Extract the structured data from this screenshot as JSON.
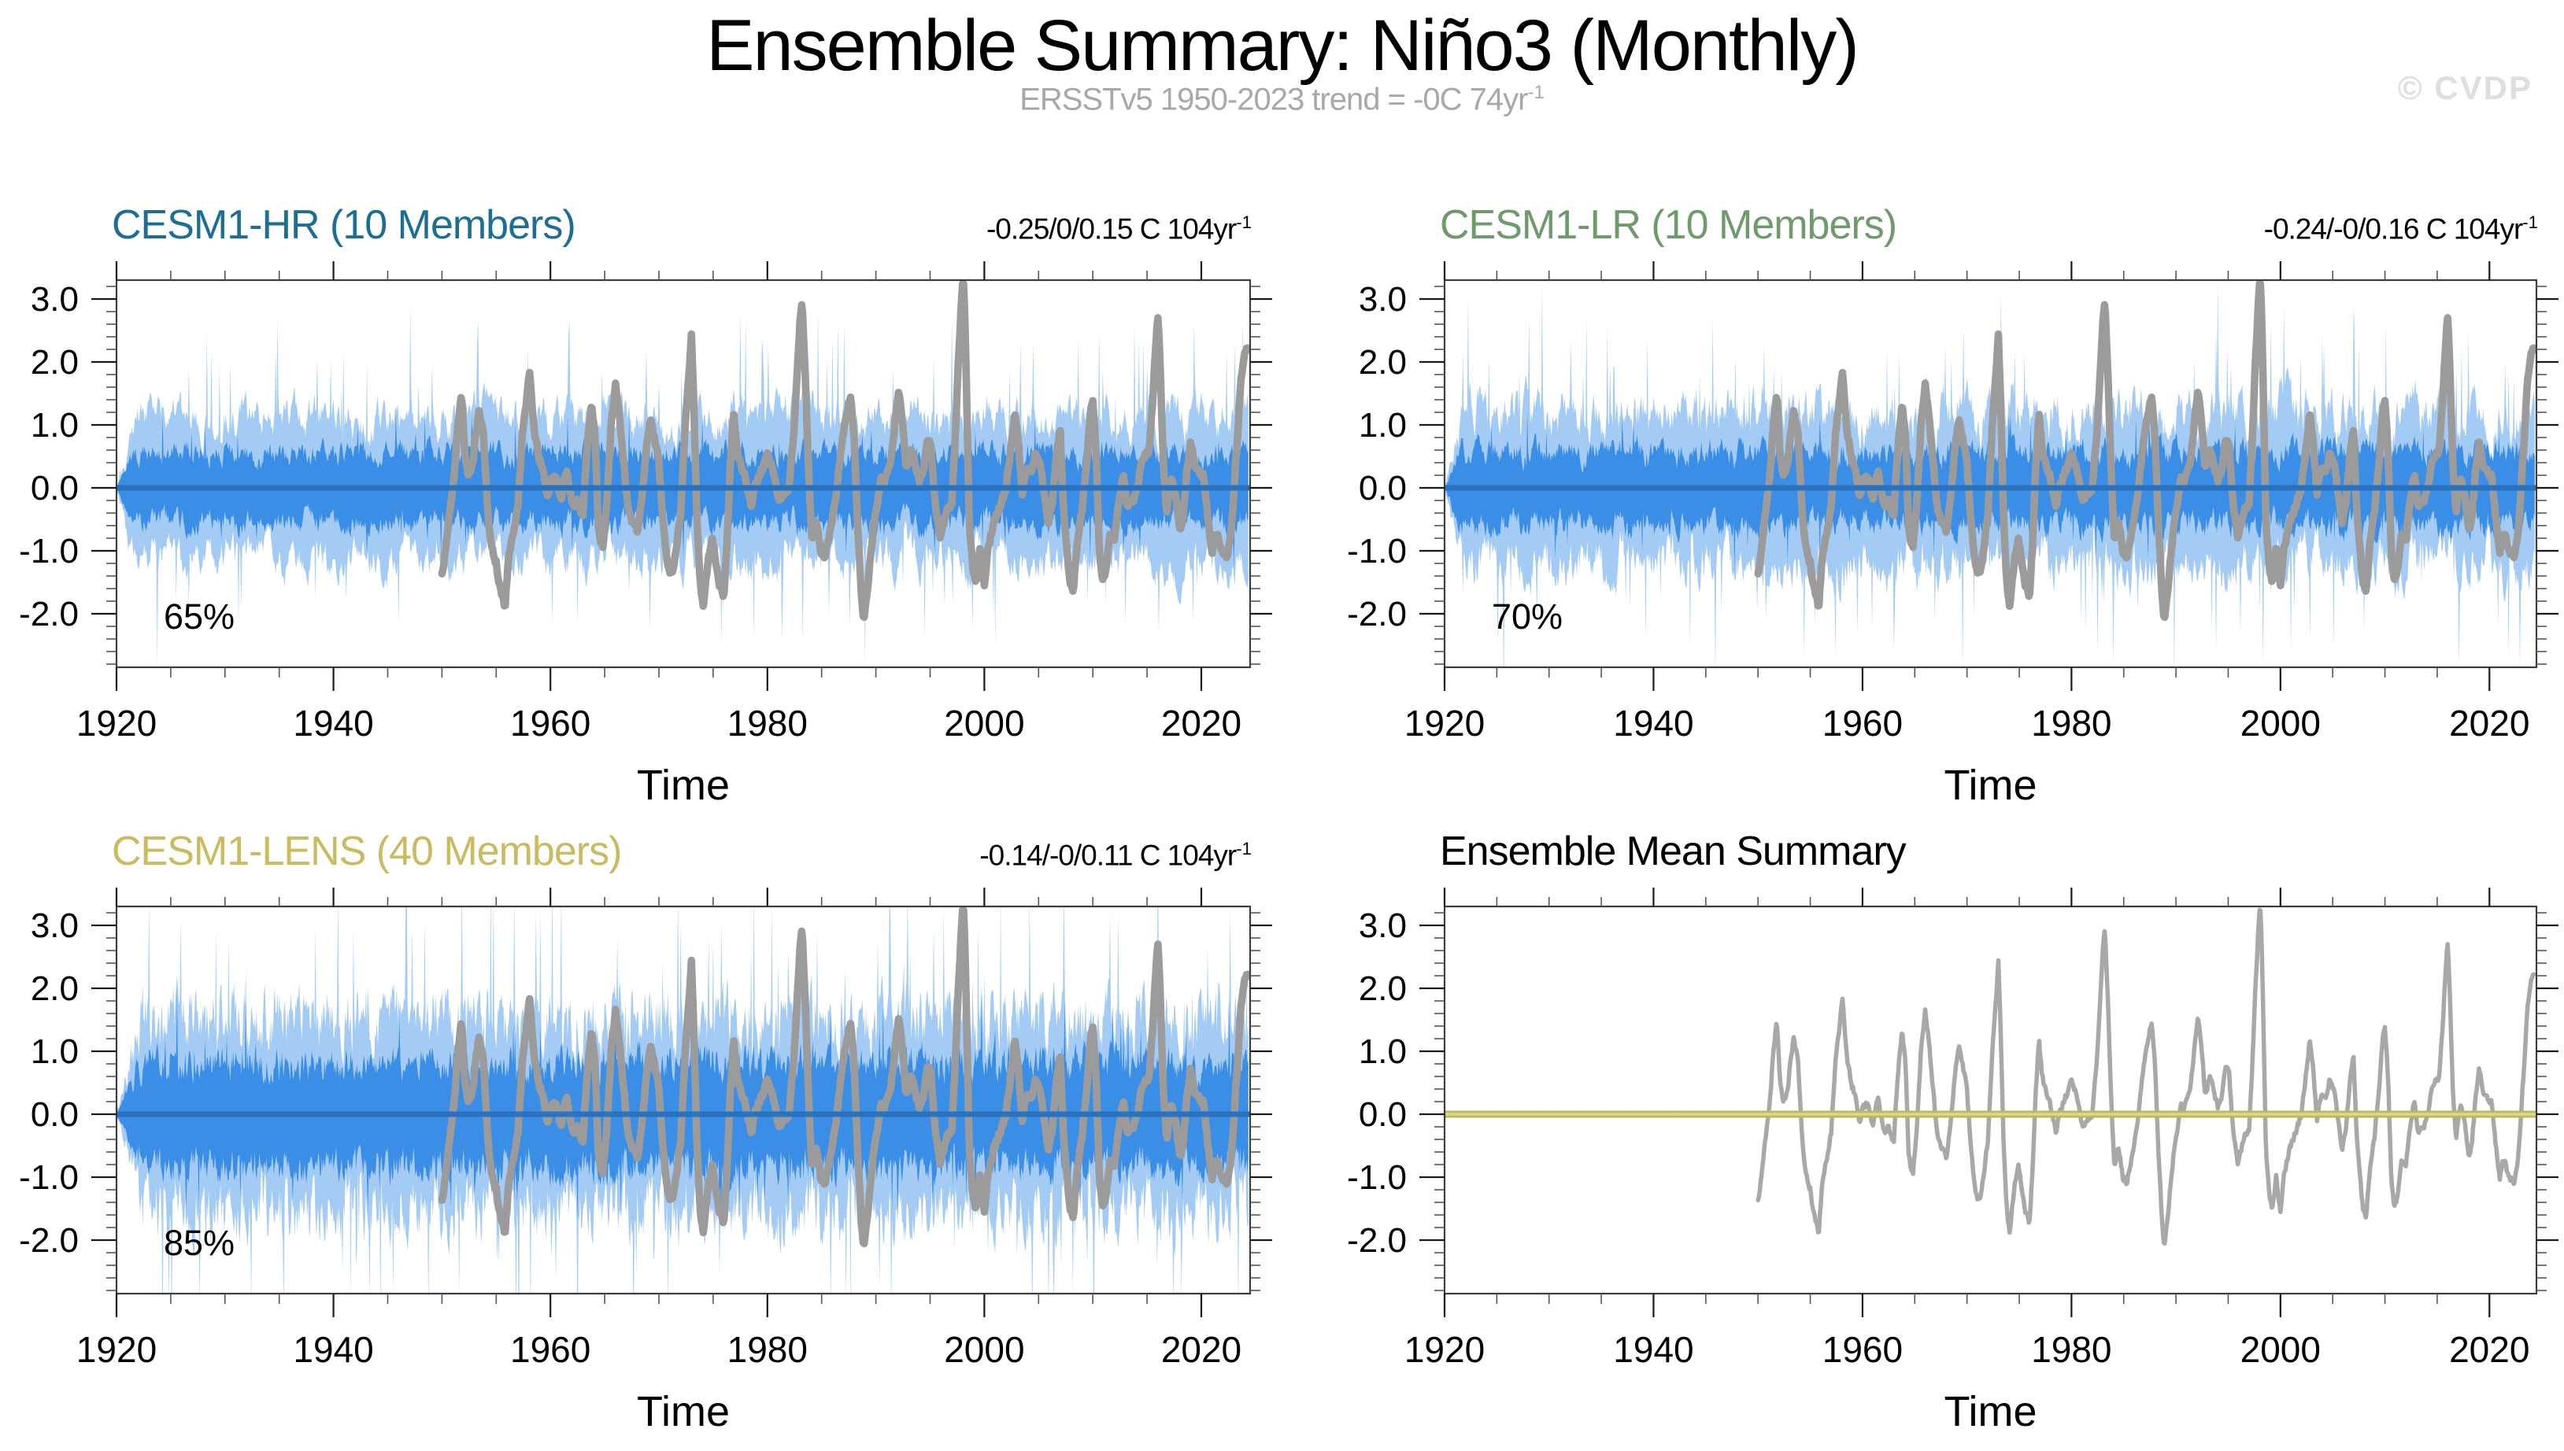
{
  "page": {
    "title": "Ensemble Summary: Niño3 (Monthly)",
    "subtitle": "ERSSTv5 1950-2023 trend = -0C 74yr",
    "subtitle_sup": "-1",
    "watermark": "© CVDP"
  },
  "colors": {
    "title": "#000000",
    "subtitle": "#a8a8a8",
    "watermark": "#dedede",
    "axis_frame": "#3c3c3c",
    "tick_major": "#1a1a1a",
    "tick_minor": "#555555",
    "spread_outer_blue": "#a4cbf3",
    "spread_inner_blue": "#3a8ee6",
    "ensemble_mean_blue": "#2a72bd",
    "observed_gray": "#9b9b9b",
    "observed_gray_light": "#a8a8a8",
    "ensemble_mean_olive": "#bdb85c",
    "ensemble_mean_olive_core": "#dbd78c"
  },
  "chart_data": {
    "type": "line",
    "title": "Ensemble Summary: Niño3 (Monthly)",
    "subtitle": "ERSSTv5 1950-2023 trend = -0C 74yr-1",
    "xlabel": "Time",
    "ylabel": "",
    "grid": false,
    "legend": "none",
    "x_range": [
      1920,
      2024.5
    ],
    "y_range": [
      -2.85,
      3.3
    ],
    "x_major_ticks": [
      1920,
      1940,
      1960,
      1980,
      2000,
      2020
    ],
    "x_minor_step": 5,
    "y_major_ticks": [
      3.0,
      2.0,
      1.0,
      0.0,
      -1.0,
      -2.0
    ],
    "y_major_labels": [
      "3.0",
      "2.0",
      "1.0",
      "0.0",
      "-1.0",
      "-2.0"
    ],
    "y_minor_step": 0.2,
    "panels": [
      {
        "id": "cesm1-hr",
        "title": "CESM1-HR (10 Members)",
        "title_color": "#1e6e94",
        "trend_label": "-0.25/0/0.15 C 104yr",
        "trend_sup": "-1",
        "agreement_label": "65%",
        "xlabel": "Time",
        "series": [
          {
            "name": "member-spread-minmax",
            "type": "band",
            "color_key": "spread_outer_blue",
            "base": 1.12,
            "variability": 0.42,
            "spike_chance": 0.035,
            "smooth": 0.78,
            "taper_years": 1.6,
            "seed": 101
          },
          {
            "name": "member-spread-core",
            "type": "band",
            "color_key": "spread_inner_blue",
            "base": 0.55,
            "variability": 0.4,
            "spike_chance": 0.02,
            "smooth": 0.7,
            "taper_years": 1.6,
            "seed": 102
          },
          {
            "name": "observed-ersstv5",
            "type": "obsline",
            "color_key": "observed_gray",
            "width": 9.5,
            "start_year": 1950
          },
          {
            "name": "ensemble-mean",
            "type": "hline",
            "value": 0,
            "color_key": "ensemble_mean_blue",
            "width": 7
          }
        ]
      },
      {
        "id": "cesm1-lr",
        "title": "CESM1-LR (10 Members)",
        "title_color": "#6f9a6c",
        "trend_label": "-0.24/-0/0.16 C 104yr",
        "trend_sup": "-1",
        "agreement_label": "70%",
        "xlabel": "Time",
        "series": [
          {
            "name": "member-spread-minmax",
            "type": "band",
            "color_key": "spread_outer_blue",
            "base": 1.2,
            "variability": 0.45,
            "spike_chance": 0.04,
            "smooth": 0.76,
            "taper_years": 1.6,
            "seed": 201
          },
          {
            "name": "member-spread-core",
            "type": "band",
            "color_key": "spread_inner_blue",
            "base": 0.58,
            "variability": 0.4,
            "spike_chance": 0.02,
            "smooth": 0.68,
            "taper_years": 1.6,
            "seed": 202
          },
          {
            "name": "observed-ersstv5",
            "type": "obsline",
            "color_key": "observed_gray",
            "width": 9.5,
            "start_year": 1950
          },
          {
            "name": "ensemble-mean",
            "type": "hline",
            "value": 0,
            "color_key": "ensemble_mean_blue",
            "width": 7
          }
        ]
      },
      {
        "id": "cesm1-lens",
        "title": "CESM1-LENS (40 Members)",
        "title_color": "#c9bb60",
        "trend_label": "-0.14/-0/0.11 C 104yr",
        "trend_sup": "-1",
        "agreement_label": "85%",
        "xlabel": "Time",
        "series": [
          {
            "name": "member-spread-minmax",
            "type": "band",
            "color_key": "spread_outer_blue",
            "base": 1.5,
            "variability": 0.3,
            "spike_chance": 0.05,
            "smooth": 0.55,
            "taper_years": 2.4,
            "seed": 301
          },
          {
            "name": "member-spread-core",
            "type": "band",
            "color_key": "spread_inner_blue",
            "base": 0.82,
            "variability": 0.28,
            "spike_chance": 0.03,
            "smooth": 0.52,
            "taper_years": 2.4,
            "seed": 302
          },
          {
            "name": "observed-ersstv5",
            "type": "obsline",
            "color_key": "observed_gray",
            "width": 9.5,
            "start_year": 1950
          },
          {
            "name": "ensemble-mean",
            "type": "hline",
            "value": 0,
            "color_key": "ensemble_mean_blue",
            "width": 7
          }
        ]
      },
      {
        "id": "ensemble-mean-summary",
        "title": "Ensemble Mean Summary",
        "title_color": "#000000",
        "trend_label": "",
        "trend_sup": "",
        "agreement_label": "",
        "xlabel": "Time",
        "series": [
          {
            "name": "observed-ersstv5",
            "type": "obsline",
            "color_key": "observed_gray_light",
            "width": 5.5,
            "start_year": 1950
          },
          {
            "name": "ensemble-mean",
            "type": "hline",
            "value": 0,
            "color_key": "ensemble_mean_olive",
            "width": 9,
            "core_color_key": "ensemble_mean_olive_core",
            "core_width": 3.5
          }
        ]
      }
    ],
    "observed_nino3_anomaly_C": [
      [
        1950,
        -1.4
      ],
      [
        1950.3,
        -1
      ],
      [
        1950.6,
        -0.6
      ],
      [
        1950.9,
        -0.2
      ],
      [
        1951.2,
        0.4
      ],
      [
        1951.5,
        1.1
      ],
      [
        1951.8,
        1.5
      ],
      [
        1952.1,
        0.6
      ],
      [
        1952.4,
        0.2
      ],
      [
        1952.8,
        0.4
      ],
      [
        1953.1,
        0.8
      ],
      [
        1953.4,
        1.2
      ],
      [
        1953.8,
        0.9
      ],
      [
        1954.2,
        -0.3
      ],
      [
        1954.6,
        -1
      ],
      [
        1955,
        -1.2
      ],
      [
        1955.4,
        -1.6
      ],
      [
        1955.8,
        -1.9
      ],
      [
        1956.2,
        -1
      ],
      [
        1956.6,
        -0.7
      ],
      [
        1957,
        -0.3
      ],
      [
        1957.4,
        0.8
      ],
      [
        1957.8,
        1.4
      ],
      [
        1958.1,
        1.9
      ],
      [
        1958.5,
        0.9
      ],
      [
        1958.9,
        0.5
      ],
      [
        1959.3,
        0.3
      ],
      [
        1959.7,
        -0.1
      ],
      [
        1960.1,
        0.1
      ],
      [
        1960.5,
        0.2
      ],
      [
        1961,
        -0.2
      ],
      [
        1961.5,
        0.3
      ],
      [
        1962,
        -0.3
      ],
      [
        1962.5,
        -0.2
      ],
      [
        1963,
        -0.4
      ],
      [
        1963.4,
        0.7
      ],
      [
        1963.8,
        1.3
      ],
      [
        1964.1,
        0.9
      ],
      [
        1964.4,
        -0.6
      ],
      [
        1964.8,
        -1
      ],
      [
        1965.2,
        -0.2
      ],
      [
        1965.6,
        1
      ],
      [
        1966,
        1.7
      ],
      [
        1966.3,
        1.2
      ],
      [
        1966.7,
        0.5
      ],
      [
        1967.1,
        -0.2
      ],
      [
        1967.5,
        -0.5
      ],
      [
        1968,
        -0.7
      ],
      [
        1968.4,
        -0.2
      ],
      [
        1968.8,
        0.5
      ],
      [
        1969.2,
        1.1
      ],
      [
        1969.6,
        0.8
      ],
      [
        1970,
        0.4
      ],
      [
        1970.4,
        -0.6
      ],
      [
        1970.8,
        -1.2
      ],
      [
        1971.2,
        -1.4
      ],
      [
        1971.6,
        -0.9
      ],
      [
        1972,
        -0.4
      ],
      [
        1972.4,
        0.9
      ],
      [
        1972.8,
        1.9
      ],
      [
        1973,
        2.5
      ],
      [
        1973.2,
        1.5
      ],
      [
        1973.5,
        -0.5
      ],
      [
        1973.8,
        -1.5
      ],
      [
        1974.1,
        -1.9
      ],
      [
        1974.5,
        -1.2
      ],
      [
        1974.9,
        -0.8
      ],
      [
        1975.3,
        -1.2
      ],
      [
        1975.7,
        -1.6
      ],
      [
        1976,
        -1.7
      ],
      [
        1976.3,
        -0.8
      ],
      [
        1976.6,
        0.4
      ],
      [
        1976.9,
        1.2
      ],
      [
        1977.2,
        0.6
      ],
      [
        1977.6,
        0.3
      ],
      [
        1978,
        0.1
      ],
      [
        1978.5,
        -0.3
      ],
      [
        1979,
        0.1
      ],
      [
        1979.5,
        0.3
      ],
      [
        1980,
        0.5
      ],
      [
        1980.5,
        0.3
      ],
      [
        1981,
        -0.2
      ],
      [
        1981.5,
        -0.1
      ],
      [
        1982,
        0
      ],
      [
        1982.4,
        0.8
      ],
      [
        1982.8,
        2
      ],
      [
        1983,
        2.6
      ],
      [
        1983.2,
        2.9
      ],
      [
        1983.5,
        1.8
      ],
      [
        1983.8,
        0.2
      ],
      [
        1984.1,
        -0.8
      ],
      [
        1984.5,
        -0.5
      ],
      [
        1984.9,
        -1
      ],
      [
        1985.3,
        -1.1
      ],
      [
        1985.7,
        -0.7
      ],
      [
        1986.1,
        -0.4
      ],
      [
        1986.5,
        0.1
      ],
      [
        1986.9,
        0.8
      ],
      [
        1987.3,
        1.2
      ],
      [
        1987.7,
        1.5
      ],
      [
        1988,
        0.8
      ],
      [
        1988.3,
        -0.5
      ],
      [
        1988.6,
        -1.5
      ],
      [
        1988.9,
        -2.1
      ],
      [
        1989.2,
        -1.6
      ],
      [
        1989.6,
        -0.9
      ],
      [
        1990,
        -0.3
      ],
      [
        1990.5,
        0.1
      ],
      [
        1991,
        0.2
      ],
      [
        1991.4,
        0.5
      ],
      [
        1991.8,
        1.1
      ],
      [
        1992.1,
        1.6
      ],
      [
        1992.4,
        1.2
      ],
      [
        1992.8,
        0.3
      ],
      [
        1993.2,
        0.6
      ],
      [
        1993.6,
        0.4
      ],
      [
        1994,
        0.1
      ],
      [
        1994.4,
        0.3
      ],
      [
        1994.8,
        0.8
      ],
      [
        1995.1,
        0.6
      ],
      [
        1995.5,
        -0.3
      ],
      [
        1995.9,
        -0.8
      ],
      [
        1996.3,
        -0.5
      ],
      [
        1996.7,
        -0.3
      ],
      [
        1997,
        -0.2
      ],
      [
        1997.3,
        0.7
      ],
      [
        1997.6,
        2
      ],
      [
        1997.9,
        3
      ],
      [
        1998.05,
        3.4
      ],
      [
        1998.2,
        2.8
      ],
      [
        1998.4,
        1.2
      ],
      [
        1998.6,
        -0.5
      ],
      [
        1998.9,
        -1.2
      ],
      [
        1999.2,
        -1.5
      ],
      [
        1999.6,
        -1
      ],
      [
        2000,
        -1.6
      ],
      [
        2000.4,
        -0.9
      ],
      [
        2000.8,
        -0.6
      ],
      [
        2001.2,
        -0.4
      ],
      [
        2001.6,
        -0.2
      ],
      [
        2002,
        0
      ],
      [
        2002.4,
        0.6
      ],
      [
        2002.8,
        1.2
      ],
      [
        2003.1,
        0.8
      ],
      [
        2003.5,
        -0.1
      ],
      [
        2003.9,
        0.3
      ],
      [
        2004.3,
        0.2
      ],
      [
        2004.7,
        0.6
      ],
      [
        2005.1,
        0.4
      ],
      [
        2005.5,
        -0.1
      ],
      [
        2005.9,
        -0.5
      ],
      [
        2006.3,
        -0.2
      ],
      [
        2006.7,
        0.7
      ],
      [
        2007,
        0.9
      ],
      [
        2007.3,
        -0.3
      ],
      [
        2007.6,
        -1
      ],
      [
        2007.9,
        -1.5
      ],
      [
        2008.2,
        -1.6
      ],
      [
        2008.6,
        -0.8
      ],
      [
        2009,
        -0.4
      ],
      [
        2009.4,
        0.4
      ],
      [
        2009.8,
        1.2
      ],
      [
        2010,
        1.4
      ],
      [
        2010.3,
        0.6
      ],
      [
        2010.6,
        -1
      ],
      [
        2010.9,
        -1.5
      ],
      [
        2011.2,
        -1.3
      ],
      [
        2011.6,
        -0.7
      ],
      [
        2012,
        -0.8
      ],
      [
        2012.4,
        -0.2
      ],
      [
        2012.8,
        0.2
      ],
      [
        2013.2,
        -0.3
      ],
      [
        2013.6,
        -0.2
      ],
      [
        2014,
        -0.1
      ],
      [
        2014.4,
        0.3
      ],
      [
        2014.8,
        0.5
      ],
      [
        2015.2,
        0.6
      ],
      [
        2015.5,
        1.3
      ],
      [
        2015.8,
        2.3
      ],
      [
        2016,
        2.7
      ],
      [
        2016.2,
        2
      ],
      [
        2016.5,
        0.4
      ],
      [
        2016.8,
        -0.4
      ],
      [
        2017.2,
        0.1
      ],
      [
        2017.6,
        -0.1
      ],
      [
        2018,
        -0.7
      ],
      [
        2018.3,
        -0.5
      ],
      [
        2018.7,
        0.3
      ],
      [
        2019,
        0.8
      ],
      [
        2019.4,
        0.4
      ],
      [
        2019.8,
        0.3
      ],
      [
        2020.2,
        0.2
      ],
      [
        2020.6,
        -0.5
      ],
      [
        2021,
        -1
      ],
      [
        2021.3,
        -0.7
      ],
      [
        2021.7,
        -0.9
      ],
      [
        2022,
        -1
      ],
      [
        2022.4,
        -1.1
      ],
      [
        2022.8,
        -0.6
      ],
      [
        2023.1,
        0.2
      ],
      [
        2023.4,
        1
      ],
      [
        2023.7,
        1.8
      ],
      [
        2023.95,
        2.1
      ],
      [
        2024.2,
        2.2
      ]
    ]
  }
}
